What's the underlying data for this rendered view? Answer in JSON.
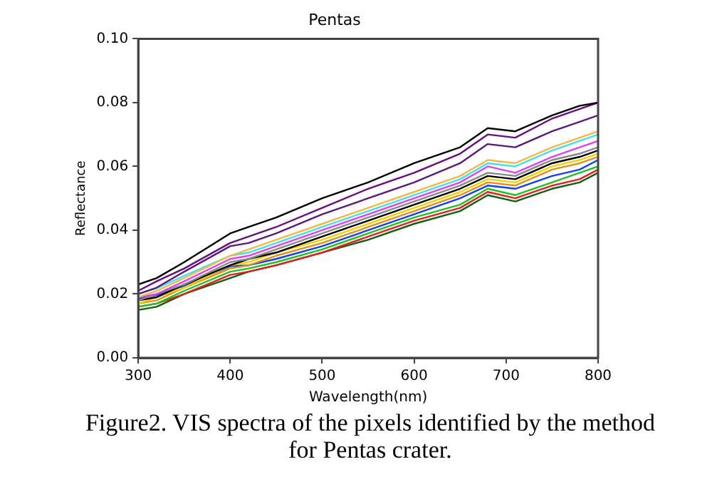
{
  "chart_data": {
    "type": "line",
    "title": "Pentas",
    "xlabel": "Wavelength(nm)",
    "ylabel": "Reflectance",
    "x": [
      300,
      320,
      350,
      400,
      420,
      450,
      500,
      550,
      600,
      650,
      680,
      710,
      750,
      780,
      800
    ],
    "xlim": [
      300,
      800
    ],
    "xticks": [
      300,
      400,
      500,
      600,
      700,
      800
    ],
    "ylim": [
      0,
      0.1
    ],
    "yticks": [
      {
        "value": 0,
        "label": "0.00"
      },
      {
        "value": 0.02,
        "label": "0.02"
      },
      {
        "value": 0.04,
        "label": "0.04"
      },
      {
        "value": 0.06,
        "label": "0.06"
      },
      {
        "value": 0.08,
        "label": "0.08"
      },
      {
        "value": 0.1,
        "label": "0.10"
      }
    ],
    "grid": false,
    "legend": false,
    "marker": "none",
    "line_style": "solid",
    "annotations": [
      "Figure2. VIS spectra of the pixels identified by the method for Pentas crater."
    ],
    "series": [
      {
        "color": "#000000",
        "values": [
          0.023,
          0.025,
          0.03,
          0.039,
          0.041,
          0.044,
          0.05,
          0.055,
          0.061,
          0.066,
          0.072,
          0.071,
          0.076,
          0.079,
          0.08
        ]
      },
      {
        "color": "#6a0d83",
        "values": [
          0.021,
          0.024,
          0.028,
          0.036,
          0.038,
          0.041,
          0.047,
          0.053,
          0.058,
          0.064,
          0.07,
          0.069,
          0.075,
          0.078,
          0.08
        ]
      },
      {
        "color": "#5b1a7a",
        "values": [
          0.02,
          0.022,
          0.027,
          0.035,
          0.036,
          0.039,
          0.045,
          0.05,
          0.055,
          0.061,
          0.067,
          0.066,
          0.071,
          0.074,
          0.076
        ]
      },
      {
        "color": "#f5b942",
        "values": [
          0.019,
          0.021,
          0.025,
          0.032,
          0.034,
          0.037,
          0.042,
          0.047,
          0.052,
          0.057,
          0.062,
          0.061,
          0.066,
          0.069,
          0.071
        ]
      },
      {
        "color": "#40e0f0",
        "values": [
          0.02,
          0.0218,
          0.0257,
          0.032,
          0.033,
          0.036,
          0.041,
          0.046,
          0.051,
          0.056,
          0.061,
          0.06,
          0.065,
          0.068,
          0.07
        ]
      },
      {
        "color": "#e040f0",
        "values": [
          0.019,
          0.02,
          0.024,
          0.031,
          0.032,
          0.035,
          0.04,
          0.045,
          0.05,
          0.055,
          0.06,
          0.058,
          0.063,
          0.066,
          0.068
        ]
      },
      {
        "color": "#888888",
        "values": [
          0.018,
          0.02,
          0.023,
          0.03,
          0.031,
          0.034,
          0.039,
          0.044,
          0.049,
          0.054,
          0.058,
          0.057,
          0.062,
          0.064,
          0.066
        ]
      },
      {
        "color": "#000000",
        "values": [
          0.018,
          0.019,
          0.023,
          0.029,
          0.031,
          0.033,
          0.038,
          0.043,
          0.048,
          0.053,
          0.057,
          0.056,
          0.061,
          0.063,
          0.065
        ]
      },
      {
        "color": "#f0d000",
        "values": [
          0.017,
          0.019,
          0.022,
          0.029,
          0.03,
          0.033,
          0.037,
          0.042,
          0.047,
          0.052,
          0.056,
          0.055,
          0.06,
          0.062,
          0.064
        ]
      },
      {
        "color": "#e09020",
        "values": [
          0.017,
          0.018,
          0.022,
          0.028,
          0.029,
          0.032,
          0.036,
          0.041,
          0.046,
          0.051,
          0.055,
          0.054,
          0.059,
          0.061,
          0.063
        ]
      },
      {
        "color": "#1040f0",
        "values": [
          0.0186,
          0.0197,
          0.0226,
          0.0287,
          0.029,
          0.031,
          0.035,
          0.04,
          0.045,
          0.05,
          0.054,
          0.053,
          0.057,
          0.059,
          0.062
        ]
      },
      {
        "color": "#20c020",
        "values": [
          0.016,
          0.017,
          0.021,
          0.027,
          0.028,
          0.03,
          0.034,
          0.039,
          0.044,
          0.048,
          0.053,
          0.051,
          0.055,
          0.058,
          0.06
        ]
      },
      {
        "color": "#e02020",
        "values": [
          0.016,
          0.017,
          0.02,
          0.026,
          0.027,
          0.029,
          0.033,
          0.038,
          0.043,
          0.047,
          0.052,
          0.05,
          0.054,
          0.056,
          0.059
        ]
      },
      {
        "color": "#106010",
        "values": [
          0.015,
          0.016,
          0.02,
          0.025,
          0.027,
          0.029,
          0.033,
          0.037,
          0.042,
          0.046,
          0.051,
          0.049,
          0.053,
          0.055,
          0.058
        ]
      }
    ]
  }
}
